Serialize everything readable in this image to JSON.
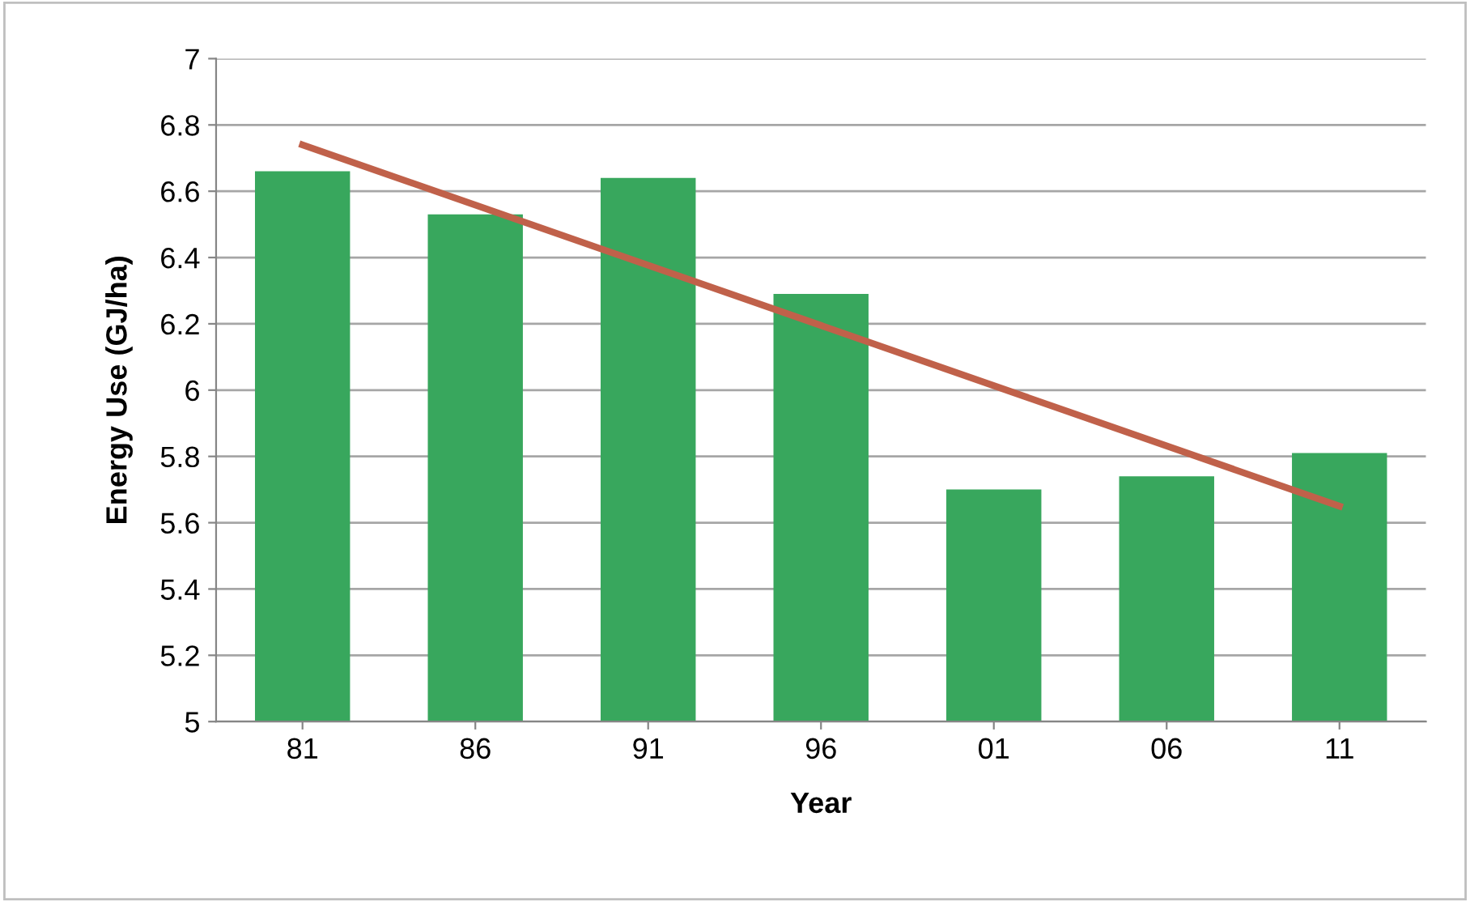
{
  "chart_data": {
    "type": "bar",
    "xlabel": "Year",
    "ylabel": "Energy Use (GJ/ha)",
    "categories": [
      "81",
      "86",
      "91",
      "96",
      "01",
      "06",
      "11"
    ],
    "series": [
      {
        "color": "#38a75d",
        "values": [
          6.66,
          6.53,
          6.64,
          6.29,
          5.7,
          5.74,
          5.81
        ]
      },
      {
        "type": "line",
        "color": "#c0614a",
        "x": [
          "81",
          "11"
        ],
        "values": [
          6.74,
          5.65
        ]
      }
    ],
    "ylim": [
      5,
      7
    ],
    "yticks": [
      5,
      5.2,
      5.4,
      5.6,
      5.8,
      6,
      6.2,
      6.4,
      6.6,
      6.8,
      7
    ],
    "grid": "y",
    "legend": false
  }
}
